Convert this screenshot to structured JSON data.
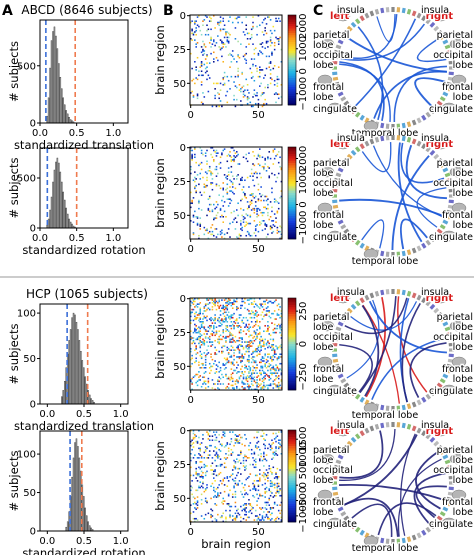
{
  "panel_letters": {
    "a": "A",
    "b": "B",
    "c": "C"
  },
  "chart_data": [
    {
      "type": "bar",
      "title": "ABCD (8646 subjects)",
      "xlabel": "standardized translation",
      "ylabel": "# subjects",
      "xticks": [
        "0.0",
        "0.5",
        "1.0"
      ],
      "yticks": [
        "0",
        "500"
      ],
      "xlim": [
        0,
        1.2
      ],
      "ylim": [
        0,
        900
      ],
      "vlines": [
        {
          "x": 0.08,
          "color": "#3b6fd8"
        },
        {
          "x": 0.48,
          "color": "#ef7b4f"
        }
      ],
      "bins_x": [
        0.1,
        0.12,
        0.14,
        0.16,
        0.18,
        0.2,
        0.22,
        0.24,
        0.26,
        0.28,
        0.3,
        0.32,
        0.34,
        0.36,
        0.38,
        0.4,
        0.42,
        0.44,
        0.46
      ],
      "bins_y": [
        60,
        220,
        480,
        720,
        800,
        840,
        760,
        650,
        520,
        400,
        300,
        220,
        160,
        110,
        80,
        50,
        30,
        20,
        10
      ]
    },
    {
      "type": "bar",
      "title": "",
      "xlabel": "standardized rotation",
      "ylabel": "# subjects",
      "xticks": [
        "0.0",
        "0.5",
        "1.0"
      ],
      "yticks": [
        "0",
        "500"
      ],
      "xlim": [
        0,
        1.2
      ],
      "ylim": [
        0,
        800
      ],
      "vlines": [
        {
          "x": 0.1,
          "color": "#3b6fd8"
        },
        {
          "x": 0.5,
          "color": "#ef7b4f"
        }
      ],
      "bins_x": [
        0.1,
        0.12,
        0.14,
        0.16,
        0.18,
        0.2,
        0.22,
        0.24,
        0.26,
        0.28,
        0.3,
        0.32,
        0.34,
        0.36,
        0.38,
        0.4,
        0.42,
        0.44,
        0.46,
        0.48
      ],
      "bins_y": [
        30,
        90,
        180,
        310,
        460,
        580,
        660,
        700,
        650,
        560,
        460,
        360,
        280,
        200,
        140,
        90,
        60,
        40,
        20,
        10
      ]
    },
    {
      "type": "bar",
      "title": "HCP (1065 subjects)",
      "xlabel": "standardized translation",
      "ylabel": "# subjects",
      "xticks": [
        "0.0",
        "0.5",
        "1.0"
      ],
      "yticks": [
        "0",
        "50",
        "100"
      ],
      "xlim": [
        -0.1,
        1.1
      ],
      "ylim": [
        0,
        110
      ],
      "vlines": [
        {
          "x": 0.27,
          "color": "#3b6fd8"
        },
        {
          "x": 0.55,
          "color": "#ef7b4f"
        }
      ],
      "bins_x": [
        0.2,
        0.22,
        0.24,
        0.26,
        0.28,
        0.3,
        0.32,
        0.34,
        0.36,
        0.38,
        0.4,
        0.42,
        0.44,
        0.46,
        0.48,
        0.5,
        0.52,
        0.54,
        0.56,
        0.58,
        0.6,
        0.62,
        0.64
      ],
      "bins_y": [
        8,
        15,
        25,
        40,
        55,
        70,
        82,
        95,
        100,
        98,
        90,
        82,
        70,
        58,
        48,
        40,
        30,
        22,
        15,
        10,
        6,
        4,
        2
      ]
    },
    {
      "type": "bar",
      "title": "",
      "xlabel": "standardized rotation",
      "ylabel": "# subjects",
      "xticks": [
        "0.0",
        "0.5",
        "1.0"
      ],
      "yticks": [
        "0",
        "50",
        "100"
      ],
      "xlim": [
        -0.1,
        1.1
      ],
      "ylim": [
        0,
        130
      ],
      "vlines": [
        {
          "x": 0.31,
          "color": "#3b6fd8"
        },
        {
          "x": 0.47,
          "color": "#ef7b4f"
        }
      ],
      "bins_x": [
        0.26,
        0.28,
        0.3,
        0.32,
        0.34,
        0.36,
        0.38,
        0.4,
        0.42,
        0.44,
        0.46,
        0.48,
        0.5,
        0.52,
        0.54,
        0.56,
        0.58,
        0.6,
        0.62
      ],
      "bins_y": [
        5,
        12,
        25,
        45,
        70,
        95,
        115,
        120,
        110,
        95,
        78,
        60,
        45,
        30,
        20,
        12,
        7,
        4,
        2
      ]
    },
    {
      "type": "heatmap",
      "xlabel": "",
      "ylabel": "brain region",
      "xticks": [
        "0",
        "50"
      ],
      "yticks": [
        "0",
        "25",
        "50"
      ],
      "colorbar_ticks": [
        "2000",
        "1000",
        "0",
        "−1000"
      ],
      "vmin": -1500,
      "vmax": 2500,
      "density": 0.07
    },
    {
      "type": "heatmap",
      "xlabel": "",
      "ylabel": "brain region",
      "xticks": [
        "0",
        "50"
      ],
      "yticks": [
        "0",
        "25",
        "50"
      ],
      "colorbar_ticks": [
        "2000",
        "1000",
        "0",
        "−1000"
      ],
      "vmin": -1500,
      "vmax": 2500,
      "density": 0.09
    },
    {
      "type": "heatmap",
      "xlabel": "",
      "ylabel": "brain region",
      "xticks": [
        "0",
        "50"
      ],
      "yticks": [
        "0",
        "25",
        "50"
      ],
      "colorbar_ticks": [
        "250",
        "0",
        "−250"
      ],
      "vmin": -350,
      "vmax": 350,
      "density": 0.2
    },
    {
      "type": "heatmap",
      "xlabel": "brain region",
      "ylabel": "brain region",
      "xticks": [
        "0",
        "50"
      ],
      "yticks": [
        "0",
        "25",
        "50"
      ],
      "colorbar_ticks": [
        "1500",
        "1000",
        "500",
        "0",
        "−500",
        "−1000"
      ],
      "vmin": -1200,
      "vmax": 1800,
      "density": 0.12
    }
  ],
  "circle_labels": {
    "left": "left",
    "right": "right",
    "insula_l": "insula",
    "insula_r": "insula",
    "parietal_l": "parietal",
    "lobe_pl": "lobe",
    "parietal_r": "parietal",
    "lobe_pr": "lobe",
    "occipital_l": "occipital",
    "lobe_ol": "lobe",
    "occipital_r": "occipital",
    "lobe_or": "lobe",
    "frontal_l": "frontal",
    "lobe_fl": "lobe",
    "frontal_r": "frontal",
    "lobe_fr": "lobe",
    "cingulate_l": "cingulate",
    "cingulate_r": "cingulate",
    "temporal": "temporal lobe"
  },
  "colors": {
    "hist_bar": "#a9a9a9",
    "lower_line": "#3b6fd8",
    "upper_line": "#ef7b4f",
    "edge_blue": "#1a56d6",
    "edge_red": "#d81b1b",
    "edge_dark": "#22227a",
    "label_red": "#d81b1b"
  }
}
